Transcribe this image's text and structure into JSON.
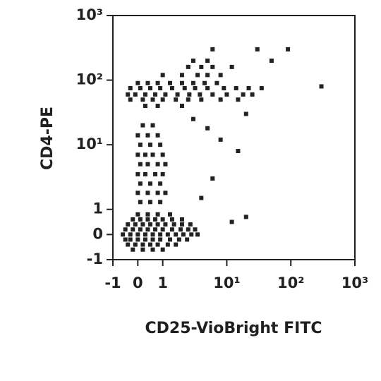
{
  "chart_data": {
    "type": "scatter",
    "scale": "logicle",
    "color": "#222222",
    "xlabel": "CD25-VioBright FITC",
    "ylabel": "CD4-PE",
    "xlim": [
      -1,
      1000
    ],
    "ylim": [
      -1,
      1000
    ],
    "xticks": [
      -1,
      0,
      1,
      {
        "value": 10,
        "label": "10¹"
      },
      {
        "value": 100,
        "label": "10²"
      },
      {
        "value": 1000,
        "label": "10³"
      }
    ],
    "yticks": [
      -1,
      0,
      1,
      {
        "value": 10,
        "label": "10¹"
      },
      {
        "value": 100,
        "label": "10²"
      },
      {
        "value": 1000,
        "label": "10³"
      }
    ],
    "x": [
      -0.2,
      0.2,
      0.6,
      1.0,
      -0.4,
      -0.1,
      0.2,
      0.5,
      0.8,
      1.2,
      1.6,
      -0.5,
      -0.3,
      0,
      0.3,
      0.6,
      0.9,
      1.3,
      1.8,
      2.4,
      -0.6,
      -0.3,
      0,
      0.3,
      0.6,
      0.9,
      1.2,
      1.6,
      2.1,
      2.8,
      3.5,
      -0.5,
      -0.2,
      0.1,
      0.4,
      0.7,
      1.0,
      1.4,
      1.9,
      2.5,
      3.2,
      -0.4,
      -0.1,
      0.2,
      0.5,
      0.8,
      1.1,
      1.5,
      2.0,
      2.7,
      -0.2,
      0.1,
      0.4,
      0.7,
      1.0,
      1.4,
      2.0,
      0,
      0.4,
      0.8,
      1.3,
      0.1,
      0.5,
      0.9,
      0,
      0.4,
      0.8,
      1.1,
      0.1,
      0.5,
      0.9,
      0,
      0.3,
      0.7,
      1.0,
      0.1,
      0.4,
      0.8,
      1.1,
      0,
      0.3,
      0.6,
      1.0,
      0.1,
      0.5,
      0.9,
      0,
      0.4,
      0.8,
      0.2,
      0.6,
      0.3,
      0.8,
      2,
      -0.3,
      0.2,
      0.6,
      1.0,
      1.6,
      2.5,
      4,
      8,
      15,
      -0.4,
      -0.1,
      0.3,
      0.7,
      1.1,
      1.7,
      2.6,
      3.8,
      6,
      10,
      18,
      25,
      -0.3,
      0.1,
      0.5,
      0.9,
      1.4,
      2.2,
      3.2,
      5,
      9,
      14,
      22,
      35,
      0,
      0.4,
      0.8,
      1.3,
      2,
      3,
      4.5,
      7,
      1,
      2,
      3.5,
      5,
      8,
      2.5,
      4,
      6,
      12,
      3,
      5,
      50,
      6,
      30,
      90,
      300,
      3,
      5,
      8,
      15,
      20,
      12,
      20,
      6,
      4
    ],
    "values": [
      -0.6,
      -0.6,
      -0.6,
      -0.6,
      -0.4,
      -0.4,
      -0.4,
      -0.4,
      -0.4,
      -0.4,
      -0.4,
      -0.2,
      -0.2,
      -0.2,
      -0.2,
      -0.2,
      -0.2,
      -0.2,
      -0.2,
      -0.2,
      0,
      0,
      0,
      0,
      0,
      0,
      0,
      0,
      0,
      0,
      0,
      0.2,
      0.2,
      0.2,
      0.2,
      0.2,
      0.2,
      0.2,
      0.2,
      0.2,
      0.2,
      0.4,
      0.4,
      0.4,
      0.4,
      0.4,
      0.4,
      0.4,
      0.4,
      0.4,
      0.6,
      0.6,
      0.6,
      0.6,
      0.6,
      0.6,
      0.6,
      0.8,
      0.8,
      0.8,
      0.8,
      1.3,
      1.3,
      1.3,
      1.8,
      1.8,
      1.8,
      1.8,
      2.5,
      2.5,
      2.5,
      3.5,
      3.5,
      3.5,
      3.5,
      5,
      5,
      5,
      5,
      7,
      7,
      7,
      7,
      10,
      10,
      10,
      14,
      14,
      14,
      20,
      20,
      40,
      40,
      40,
      50,
      50,
      50,
      50,
      50,
      50,
      50,
      50,
      50,
      60,
      60,
      60,
      60,
      60,
      60,
      60,
      60,
      60,
      60,
      60,
      60,
      75,
      75,
      75,
      75,
      75,
      75,
      75,
      75,
      75,
      75,
      75,
      75,
      90,
      90,
      90,
      90,
      90,
      90,
      90,
      90,
      120,
      120,
      120,
      120,
      120,
      160,
      160,
      160,
      160,
      200,
      200,
      200,
      300,
      300,
      300,
      80,
      25,
      18,
      12,
      8,
      30,
      0.5,
      0.7,
      3,
      1.5
    ]
  }
}
